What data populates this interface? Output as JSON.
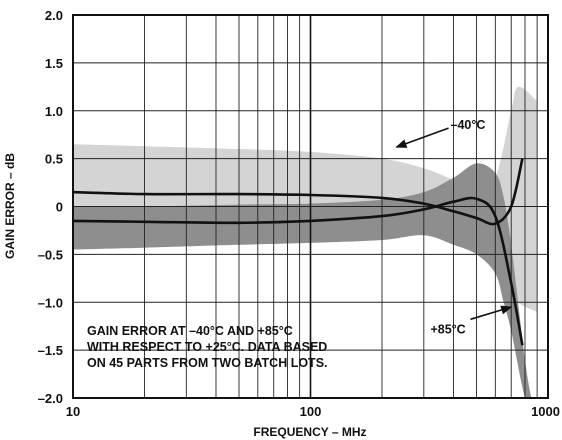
{
  "chart_data": {
    "type": "line",
    "x_scale": "log",
    "xlim": [
      10,
      1000
    ],
    "ylim": [
      -2.0,
      2.0
    ],
    "grid": true,
    "xlabel": "FREQUENCY – MHz",
    "ylabel": "GAIN ERROR – dB",
    "x_ticks": [
      "10",
      "100",
      "1000"
    ],
    "y_ticks": [
      "2.0",
      "1.5",
      "1.0",
      "0.5",
      "0",
      "–0.5",
      "–1.0",
      "–1.5",
      "–2.0"
    ],
    "y_tick_values": [
      2.0,
      1.5,
      1.0,
      0.5,
      0,
      -0.5,
      -1.0,
      -1.5,
      -2.0
    ],
    "series": [
      {
        "name": "–40°C",
        "color": "#111111",
        "x": [
          10,
          20,
          50,
          100,
          200,
          300,
          400,
          500,
          600,
          700,
          780
        ],
        "y": [
          0.15,
          0.13,
          0.13,
          0.12,
          0.09,
          0.03,
          -0.05,
          -0.12,
          -0.18,
          0.0,
          0.5
        ]
      },
      {
        "name": "+85°C",
        "color": "#111111",
        "x": [
          10,
          20,
          50,
          100,
          200,
          300,
          400,
          500,
          600,
          700,
          780
        ],
        "y": [
          -0.15,
          -0.16,
          -0.17,
          -0.15,
          -0.1,
          -0.03,
          0.05,
          0.08,
          -0.1,
          -0.8,
          -1.45
        ]
      }
    ],
    "bands": [
      {
        "series": "–40°C",
        "color": "#d4d4d4",
        "x": [
          10,
          20,
          50,
          100,
          200,
          300,
          400,
          500,
          600,
          700,
          750,
          900
        ],
        "upper": [
          0.65,
          0.63,
          0.6,
          0.57,
          0.5,
          0.4,
          0.28,
          0.2,
          0.3,
          1.0,
          1.25,
          1.1
        ],
        "lower": [
          -0.2,
          -0.22,
          -0.25,
          -0.28,
          -0.3,
          -0.3,
          -0.3,
          -0.4,
          -0.6,
          -0.8,
          -1.0,
          -1.1
        ]
      },
      {
        "series": "+85°C",
        "color": "#8e8e8e",
        "x": [
          10,
          20,
          50,
          100,
          200,
          300,
          400,
          500,
          600,
          650,
          700,
          800,
          850
        ],
        "upper": [
          0.0,
          0.0,
          0.02,
          0.03,
          0.07,
          0.15,
          0.3,
          0.45,
          0.35,
          0.1,
          -0.4,
          -1.6,
          -2.0
        ],
        "lower": [
          -0.45,
          -0.43,
          -0.4,
          -0.38,
          -0.35,
          -0.3,
          -0.4,
          -0.5,
          -0.7,
          -1.0,
          -1.3,
          -2.0,
          -2.0
        ]
      }
    ],
    "annotations": [
      {
        "text": "–40°C",
        "x": 420,
        "y": 0.85,
        "arrow_to_x": 230,
        "arrow_to_y": 0.62
      },
      {
        "text": "+85°C",
        "x": 320,
        "y": -1.22,
        "arrow_to_x": 700,
        "arrow_to_y": -1.05
      }
    ],
    "note_lines": [
      "GAIN ERROR AT –40°C AND +85°C",
      "WITH RESPECT TO +25°C. DATA BASED",
      "ON 45 PARTS FROM TWO BATCH LOTS."
    ]
  }
}
